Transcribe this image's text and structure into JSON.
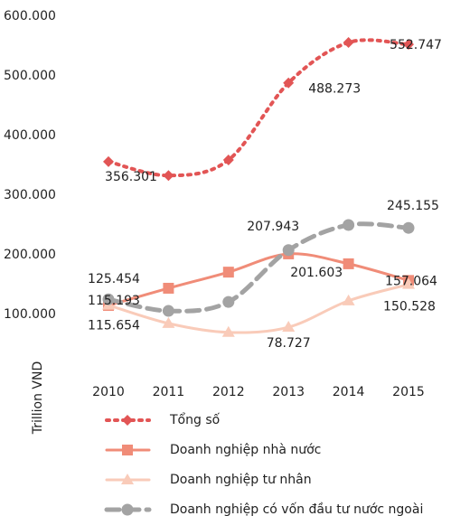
{
  "chart_data": {
    "type": "line",
    "y_label": "Trillion VND",
    "categories": [
      "2010",
      "2011",
      "2012",
      "2013",
      "2014",
      "2015"
    ],
    "ylim": [
      0,
      600
    ],
    "yticks": [
      {
        "value": 100,
        "label": "100.000"
      },
      {
        "value": 200,
        "label": "200.000"
      },
      {
        "value": 300,
        "label": "300.000"
      },
      {
        "value": 400,
        "label": "400.000"
      },
      {
        "value": 500,
        "label": "500.000"
      },
      {
        "value": 600,
        "label": "600.000"
      }
    ],
    "grid": false,
    "legend": "bottom",
    "series": [
      {
        "name": "Tổng số",
        "color": "#e25555",
        "style": "dotted",
        "marker": "diamond",
        "values": [
          356.301,
          333,
          359,
          488.273,
          556,
          552.747
        ],
        "value_labels": [
          "356.301",
          null,
          null,
          "488.273",
          null,
          "552.747"
        ]
      },
      {
        "name": "Doanh nghiệp nhà nước",
        "color": "#f08c78",
        "style": "solid",
        "marker": "square",
        "values": [
          115.193,
          144,
          171,
          201.603,
          185,
          157.064
        ],
        "value_labels": [
          "115.193",
          null,
          null,
          "201.603",
          null,
          "157.064"
        ]
      },
      {
        "name": "Doanh nghiệp tư nhân",
        "color": "#f9cbb9",
        "style": "solid",
        "marker": "triangle",
        "values": [
          115.654,
          85,
          70,
          78.727,
          123,
          150.528
        ],
        "value_labels": [
          "115.654",
          null,
          null,
          "78.727",
          null,
          "150.528"
        ]
      },
      {
        "name": "Doanh nghiệp có vốn đầu tư nước ngoài",
        "color": "#a3a3a3",
        "style": "dashed",
        "marker": "circle",
        "values": [
          125.454,
          106,
          121,
          207.943,
          250,
          245.155
        ],
        "value_labels": [
          "125.454",
          null,
          null,
          "207.943",
          null,
          "245.155"
        ]
      }
    ]
  }
}
